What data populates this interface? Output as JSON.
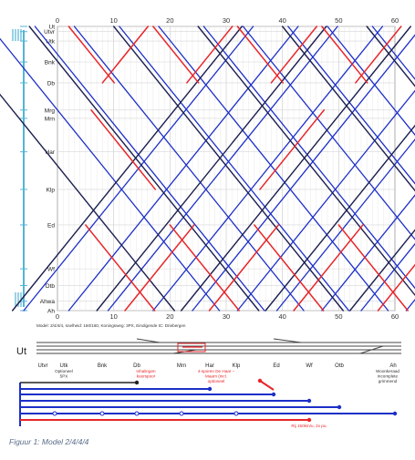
{
  "diagram": {
    "x_ticks": [
      "0",
      "10",
      "20",
      "30",
      "40",
      "50",
      "60"
    ],
    "stations": [
      {
        "label": "Ut",
        "pos": 0
      },
      {
        "label": "Utvr",
        "pos": 2.5
      },
      {
        "label": "Utk",
        "pos": 7
      },
      {
        "label": "Bnk",
        "pos": 17
      },
      {
        "label": "Db",
        "pos": 27
      },
      {
        "label": "Mrg",
        "pos": 40
      },
      {
        "label": "Mrn",
        "pos": 44
      },
      {
        "label": "Har",
        "pos": 60
      },
      {
        "label": "Klp",
        "pos": 78
      },
      {
        "label": "Ed",
        "pos": 95
      },
      {
        "label": "Wf",
        "pos": 116
      },
      {
        "label": "Otb",
        "pos": 124
      },
      {
        "label": "Ahwa",
        "pos": 131.5
      },
      {
        "label": "Ah",
        "pos": 136
      }
    ],
    "series_colors": {
      "blue": "#1c2fc8",
      "red": "#e8262a",
      "dark": "#1b1f4f",
      "accent": "#55b4d6"
    }
  },
  "track_map": {
    "model_text": "Model: 2/4/4/4, snelheid: 160/160, Koningsweg: 3PX, Eindigende IC: Driebergen",
    "station_main": "Ut",
    "stations": [
      "Utvr",
      "Utk",
      "Bnk",
      "Db",
      "Mrn",
      "Har",
      "Klp",
      "Ed",
      "Wf",
      "Otb",
      "Ah"
    ],
    "notes": {
      "utk": "Optioneel\n5PX",
      "db": "Inhalingen\nkeerspoor",
      "mrn": "4-sporen De Haar –\nMaarn (incl.\noptioneel",
      "ah": "Woonkeraad\nincomplete\ngrimmend",
      "red_bottom": "Rij 150km/u, 2x pu."
    }
  },
  "caption": "Figuur 1: Model 2/4/4/4"
}
